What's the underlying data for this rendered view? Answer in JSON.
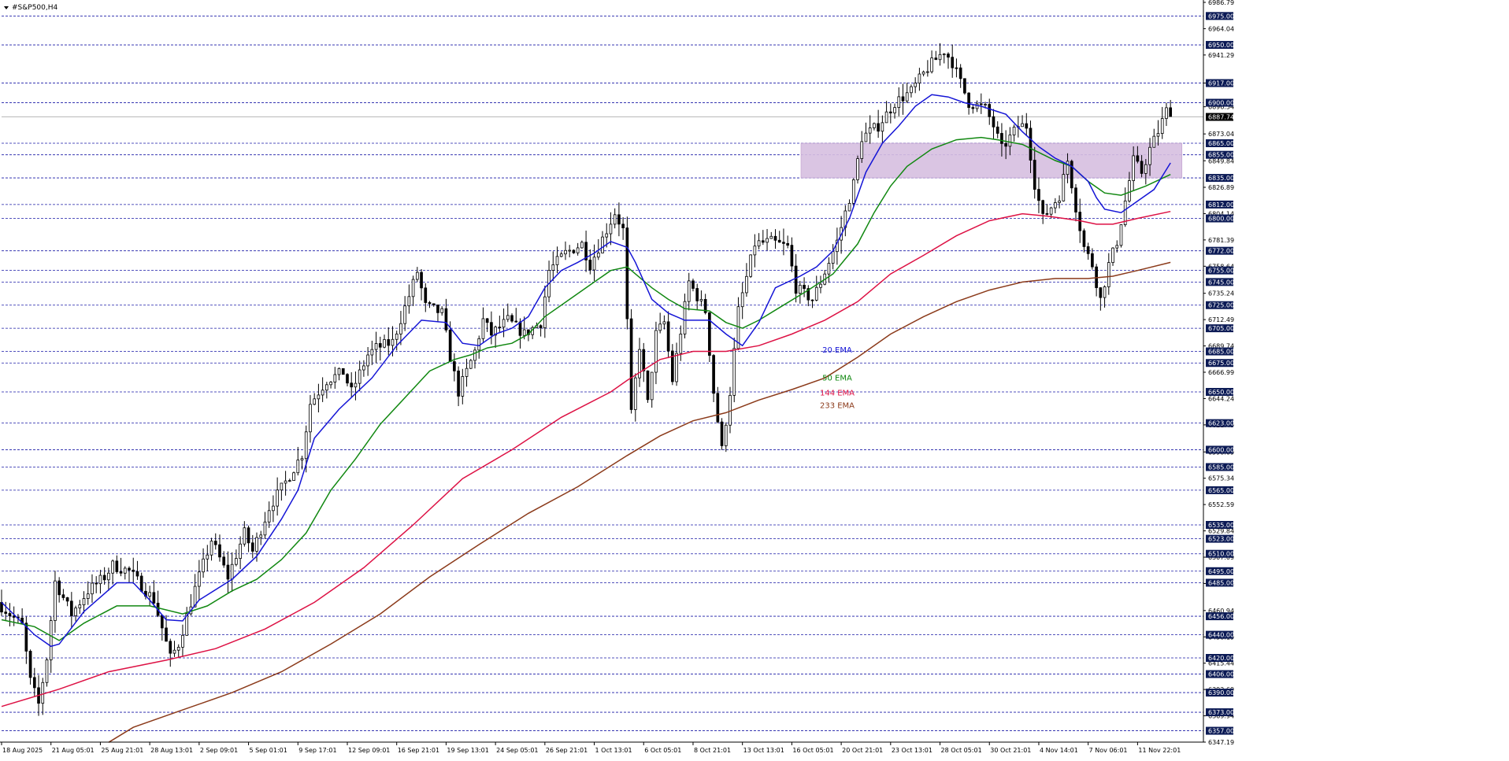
{
  "symbol_title": "#S&P500,H4",
  "colors": {
    "background": "#ffffff",
    "candle": "#000000",
    "grid": "#1a1aa6",
    "ema20": "#1515d6",
    "ema50": "#118811",
    "ema144": "#dd1144",
    "ema233": "#8b3a1a",
    "zone": "#d7bfe0",
    "level_label_bg": "#0b1a55",
    "level_label_text": "#ffffff",
    "current_label_bg": "#000000"
  },
  "chart_data": {
    "type": "candlestick",
    "timeframe": "H4",
    "ylim": [
      6347.19,
      6986.79
    ],
    "y_ticks": [
      "6986.79",
      "6964.04",
      "6941.29",
      "6917.00",
      "6896.54",
      "6873.04",
      "6849.84",
      "6826.89",
      "6804.14",
      "6781.39",
      "6758.64",
      "6735.24",
      "6712.49",
      "6689.74",
      "6666.99",
      "6644.24",
      "6621.49",
      "6598.09",
      "6575.34",
      "6552.59",
      "6529.84",
      "6507.09",
      "6484.34",
      "6460.94",
      "6438.19",
      "6415.44",
      "6392.69",
      "6369.94",
      "6347.19"
    ],
    "x_labels": [
      "18 Aug 2025",
      "21 Aug 05:01",
      "25 Aug 21:01",
      "28 Aug 13:01",
      "2 Sep 09:01",
      "5 Sep 01:01",
      "9 Sep 17:01",
      "12 Sep 09:01",
      "16 Sep 21:01",
      "19 Sep 13:01",
      "24 Sep 05:01",
      "26 Sep 21:01",
      "1 Oct 13:01",
      "6 Oct 05:01",
      "8 Oct 21:01",
      "13 Oct 13:01",
      "16 Oct 05:01",
      "20 Oct 21:01",
      "23 Oct 13:01",
      "28 Oct 05:01",
      "30 Oct 21:01",
      "4 Nov 14:01",
      "7 Nov 06:01",
      "11 Nov 22:01"
    ],
    "levels": [
      6975.0,
      6950.0,
      6917.0,
      6900.0,
      6865.0,
      6855.0,
      6835.0,
      6812.0,
      6800.0,
      6772.0,
      6755.0,
      6745.0,
      6725.0,
      6705.0,
      6685.0,
      6675.0,
      6650.0,
      6623.0,
      6600.0,
      6585.0,
      6565.0,
      6535.0,
      6523.0,
      6510.0,
      6495.0,
      6485.0,
      6456.0,
      6440.0,
      6420.0,
      6406.0,
      6390.0,
      6373.0,
      6357.0
    ],
    "current_price": 6887.74,
    "zone": {
      "from_label": "30 Oct 21:01",
      "to_label": "11 Nov 22:01",
      "top": 6865.0,
      "bottom": 6835.0
    },
    "ema_labels": [
      {
        "text": "20 EMA",
        "price": 6684
      },
      {
        "text": "50 EMA",
        "price": 6660
      },
      {
        "text": "144 EMA",
        "price": 6647
      },
      {
        "text": "233 EMA",
        "price": 6636
      }
    ],
    "price_path": [
      [
        0,
        6468
      ],
      [
        3,
        6448
      ],
      [
        4,
        6400
      ],
      [
        5,
        6380
      ],
      [
        6,
        6420
      ],
      [
        7,
        6486
      ],
      [
        9,
        6458
      ],
      [
        11,
        6478
      ],
      [
        13,
        6490
      ],
      [
        14,
        6500
      ],
      [
        16,
        6495
      ],
      [
        19,
        6470
      ],
      [
        20,
        6446
      ],
      [
        21,
        6420
      ],
      [
        22,
        6432
      ],
      [
        24,
        6480
      ],
      [
        26,
        6522
      ],
      [
        28,
        6490
      ],
      [
        30,
        6528
      ],
      [
        31,
        6512
      ],
      [
        33,
        6550
      ],
      [
        35,
        6572
      ],
      [
        37,
        6596
      ],
      [
        38,
        6640
      ],
      [
        40,
        6660
      ],
      [
        42,
        6667
      ],
      [
        43,
        6650
      ],
      [
        45,
        6682
      ],
      [
        46,
        6688
      ],
      [
        48,
        6693
      ],
      [
        50,
        6733
      ],
      [
        51,
        6754
      ],
      [
        52,
        6724
      ],
      [
        54,
        6718
      ],
      [
        55,
        6680
      ],
      [
        56,
        6650
      ],
      [
        58,
        6685
      ],
      [
        59,
        6712
      ],
      [
        60,
        6700
      ],
      [
        62,
        6712
      ],
      [
        64,
        6700
      ],
      [
        66,
        6710
      ],
      [
        67,
        6755
      ],
      [
        69,
        6770
      ],
      [
        71,
        6778
      ],
      [
        72,
        6760
      ],
      [
        74,
        6790
      ],
      [
        75,
        6805
      ],
      [
        76,
        6790
      ],
      [
        77,
        6630
      ],
      [
        78,
        6690
      ],
      [
        79,
        6640
      ],
      [
        80,
        6700
      ],
      [
        81,
        6710
      ],
      [
        82,
        6660
      ],
      [
        84,
        6745
      ],
      [
        86,
        6720
      ],
      [
        87,
        6650
      ],
      [
        88,
        6600
      ],
      [
        89,
        6650
      ],
      [
        90,
        6720
      ],
      [
        92,
        6778
      ],
      [
        94,
        6780
      ],
      [
        96,
        6775
      ],
      [
        97,
        6740
      ],
      [
        98,
        6735
      ],
      [
        99,
        6730
      ],
      [
        100,
        6745
      ],
      [
        102,
        6780
      ],
      [
        104,
        6830
      ],
      [
        105,
        6870
      ],
      [
        107,
        6880
      ],
      [
        109,
        6900
      ],
      [
        111,
        6910
      ],
      [
        113,
        6930
      ],
      [
        115,
        6945
      ],
      [
        116,
        6935
      ],
      [
        118,
        6900
      ],
      [
        120,
        6895
      ],
      [
        121,
        6880
      ],
      [
        122,
        6860
      ],
      [
        124,
        6880
      ],
      [
        125,
        6880
      ],
      [
        126,
        6830
      ],
      [
        127,
        6800
      ],
      [
        129,
        6820
      ],
      [
        130,
        6850
      ],
      [
        131,
        6810
      ],
      [
        132,
        6775
      ],
      [
        133,
        6760
      ],
      [
        134,
        6730
      ],
      [
        135,
        6760
      ],
      [
        136,
        6780
      ],
      [
        137,
        6815
      ],
      [
        138,
        6850
      ],
      [
        139,
        6840
      ],
      [
        140,
        6860
      ],
      [
        141,
        6875
      ],
      [
        142,
        6893
      ]
    ],
    "ema20": [
      [
        0,
        6468
      ],
      [
        4,
        6440
      ],
      [
        6,
        6430
      ],
      [
        7,
        6432
      ],
      [
        10,
        6460
      ],
      [
        14,
        6485
      ],
      [
        16,
        6485
      ],
      [
        18,
        6470
      ],
      [
        20,
        6453
      ],
      [
        22,
        6452
      ],
      [
        24,
        6470
      ],
      [
        28,
        6488
      ],
      [
        31,
        6508
      ],
      [
        34,
        6540
      ],
      [
        36,
        6565
      ],
      [
        38,
        6610
      ],
      [
        41,
        6635
      ],
      [
        45,
        6662
      ],
      [
        48,
        6690
      ],
      [
        51,
        6712
      ],
      [
        54,
        6710
      ],
      [
        56,
        6692
      ],
      [
        58,
        6690
      ],
      [
        60,
        6700
      ],
      [
        62,
        6705
      ],
      [
        64,
        6715
      ],
      [
        66,
        6740
      ],
      [
        68,
        6755
      ],
      [
        70,
        6762
      ],
      [
        72,
        6770
      ],
      [
        74,
        6780
      ],
      [
        76,
        6775
      ],
      [
        77,
        6762
      ],
      [
        79,
        6730
      ],
      [
        81,
        6718
      ],
      [
        83,
        6712
      ],
      [
        86,
        6712
      ],
      [
        88,
        6700
      ],
      [
        90,
        6690
      ],
      [
        92,
        6710
      ],
      [
        94,
        6740
      ],
      [
        97,
        6750
      ],
      [
        99,
        6758
      ],
      [
        101,
        6772
      ],
      [
        103,
        6800
      ],
      [
        105,
        6840
      ],
      [
        107,
        6865
      ],
      [
        109,
        6880
      ],
      [
        111,
        6897
      ],
      [
        113,
        6907
      ],
      [
        115,
        6905
      ],
      [
        117,
        6900
      ],
      [
        119,
        6897
      ],
      [
        122,
        6890
      ],
      [
        124,
        6875
      ],
      [
        126,
        6862
      ],
      [
        128,
        6852
      ],
      [
        130,
        6845
      ],
      [
        132,
        6832
      ],
      [
        133,
        6818
      ],
      [
        134,
        6808
      ],
      [
        136,
        6805
      ],
      [
        138,
        6815
      ],
      [
        140,
        6825
      ],
      [
        142,
        6848
      ]
    ],
    "ema50": [
      [
        0,
        6453
      ],
      [
        4,
        6447
      ],
      [
        7,
        6435
      ],
      [
        10,
        6450
      ],
      [
        14,
        6465
      ],
      [
        18,
        6465
      ],
      [
        22,
        6458
      ],
      [
        25,
        6465
      ],
      [
        28,
        6478
      ],
      [
        31,
        6488
      ],
      [
        34,
        6505
      ],
      [
        37,
        6528
      ],
      [
        40,
        6565
      ],
      [
        43,
        6592
      ],
      [
        46,
        6622
      ],
      [
        49,
        6645
      ],
      [
        52,
        6668
      ],
      [
        55,
        6678
      ],
      [
        57,
        6682
      ],
      [
        59,
        6688
      ],
      [
        62,
        6692
      ],
      [
        64,
        6700
      ],
      [
        66,
        6715
      ],
      [
        69,
        6730
      ],
      [
        72,
        6745
      ],
      [
        74,
        6755
      ],
      [
        76,
        6758
      ],
      [
        77,
        6752
      ],
      [
        79,
        6740
      ],
      [
        81,
        6730
      ],
      [
        83,
        6722
      ],
      [
        86,
        6720
      ],
      [
        88,
        6710
      ],
      [
        90,
        6705
      ],
      [
        92,
        6712
      ],
      [
        95,
        6725
      ],
      [
        98,
        6738
      ],
      [
        101,
        6752
      ],
      [
        104,
        6778
      ],
      [
        106,
        6805
      ],
      [
        108,
        6828
      ],
      [
        110,
        6845
      ],
      [
        113,
        6860
      ],
      [
        116,
        6868
      ],
      [
        119,
        6870
      ],
      [
        121,
        6868
      ],
      [
        124,
        6864
      ],
      [
        126,
        6857
      ],
      [
        128,
        6850
      ],
      [
        130,
        6845
      ],
      [
        132,
        6832
      ],
      [
        134,
        6822
      ],
      [
        136,
        6820
      ],
      [
        139,
        6828
      ],
      [
        142,
        6838
      ]
    ],
    "ema144": [
      [
        0,
        6378
      ],
      [
        7,
        6393
      ],
      [
        13,
        6408
      ],
      [
        20,
        6418
      ],
      [
        26,
        6428
      ],
      [
        32,
        6445
      ],
      [
        38,
        6468
      ],
      [
        44,
        6498
      ],
      [
        50,
        6535
      ],
      [
        56,
        6575
      ],
      [
        62,
        6600
      ],
      [
        68,
        6628
      ],
      [
        74,
        6650
      ],
      [
        76,
        6660
      ],
      [
        80,
        6678
      ],
      [
        84,
        6685
      ],
      [
        88,
        6685
      ],
      [
        92,
        6690
      ],
      [
        96,
        6700
      ],
      [
        100,
        6712
      ],
      [
        104,
        6728
      ],
      [
        108,
        6752
      ],
      [
        112,
        6768
      ],
      [
        116,
        6785
      ],
      [
        120,
        6798
      ],
      [
        124,
        6804
      ],
      [
        127,
        6802
      ],
      [
        129,
        6800
      ],
      [
        131,
        6798
      ],
      [
        133,
        6795
      ],
      [
        135,
        6795
      ],
      [
        138,
        6800
      ],
      [
        142,
        6806
      ]
    ],
    "ema233": [
      [
        13,
        6347
      ],
      [
        16,
        6360
      ],
      [
        22,
        6375
      ],
      [
        28,
        6390
      ],
      [
        34,
        6408
      ],
      [
        40,
        6432
      ],
      [
        46,
        6458
      ],
      [
        52,
        6490
      ],
      [
        58,
        6518
      ],
      [
        64,
        6545
      ],
      [
        70,
        6568
      ],
      [
        76,
        6595
      ],
      [
        80,
        6612
      ],
      [
        84,
        6625
      ],
      [
        88,
        6632
      ],
      [
        92,
        6643
      ],
      [
        96,
        6652
      ],
      [
        100,
        6662
      ],
      [
        104,
        6680
      ],
      [
        108,
        6700
      ],
      [
        112,
        6715
      ],
      [
        116,
        6728
      ],
      [
        120,
        6738
      ],
      [
        124,
        6745
      ],
      [
        128,
        6748
      ],
      [
        132,
        6748
      ],
      [
        135,
        6750
      ],
      [
        138,
        6755
      ],
      [
        142,
        6762
      ]
    ]
  }
}
